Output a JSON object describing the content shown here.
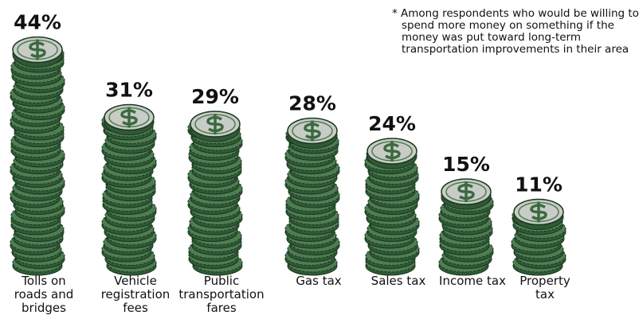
{
  "chart_data": {
    "type": "bar",
    "note": "* Among respondents who would be willing to spend more money on something if the money was put toward long-term transportation improvements in their area",
    "categories": [
      "Tolls on roads and bridges",
      "Vehicle registration fees",
      "Public transportation fares",
      "Gas tax",
      "Sales tax",
      "Income tax",
      "Property tax"
    ],
    "values": [
      44,
      31,
      29,
      28,
      24,
      15,
      11
    ],
    "value_labels": [
      "44%",
      "31%",
      "29%",
      "28%",
      "24%",
      "15%",
      "11%"
    ],
    "color": "#4e7d52"
  }
}
